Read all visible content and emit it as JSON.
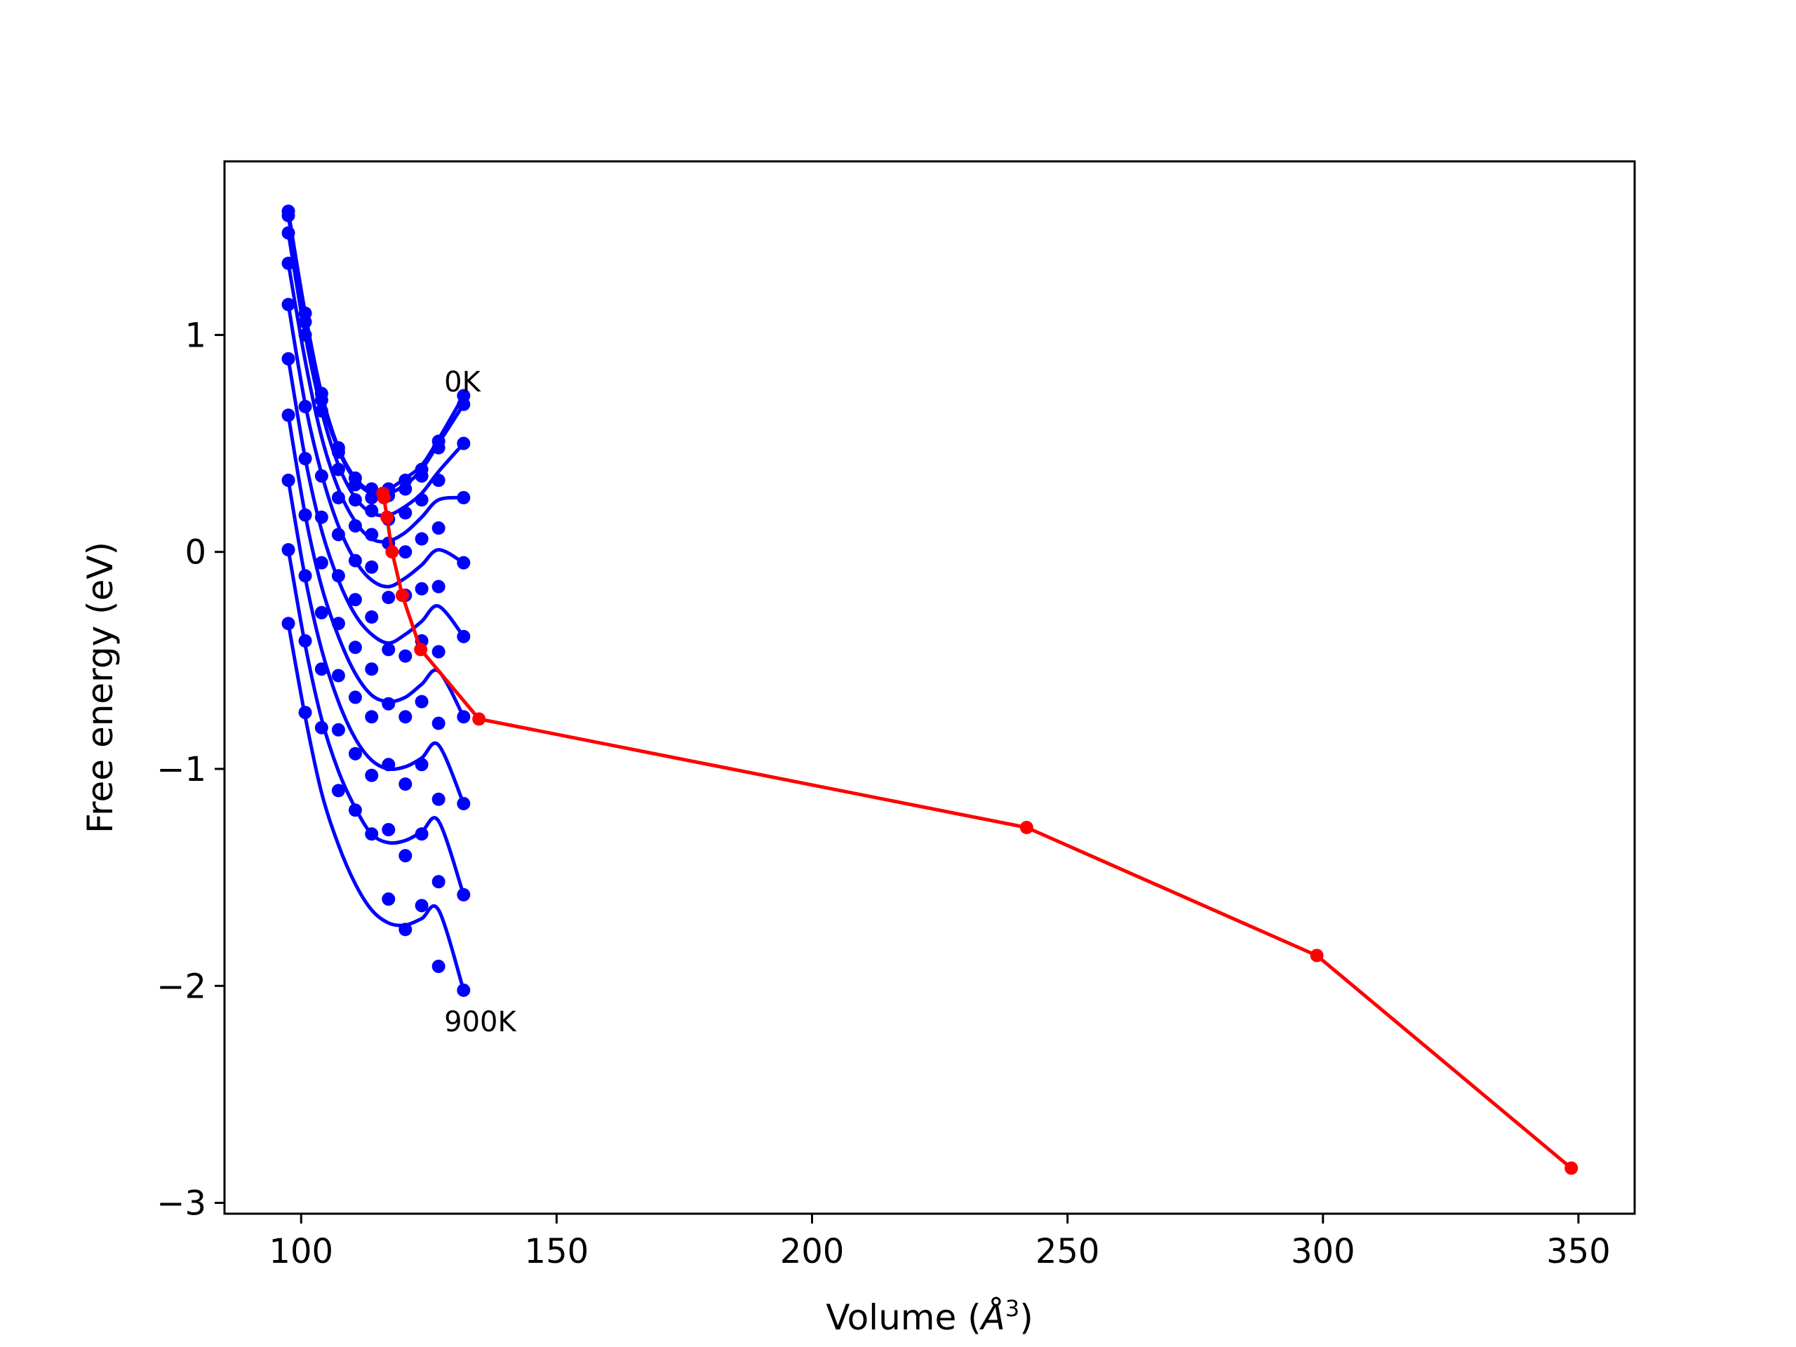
{
  "chart_data": {
    "type": "line",
    "xlabel_prefix": "Volume (",
    "xlabel_unit": "Å",
    "xlabel_exp": "3",
    "xlabel_suffix": ")",
    "ylabel": "Free energy (eV)",
    "xlim": [
      85,
      361
    ],
    "ylim": [
      -3.05,
      1.8
    ],
    "x_ticks": [
      100,
      150,
      200,
      250,
      300,
      350
    ],
    "y_ticks": [
      -3,
      -2,
      -1,
      0,
      1
    ],
    "x_tick_labels": [
      "100",
      "150",
      "200",
      "250",
      "300",
      "350"
    ],
    "y_tick_labels": [
      "−3",
      "−2",
      "−1",
      "0",
      "1"
    ],
    "grid": false,
    "colors": {
      "isotherm": "#0000ff",
      "minimum_path": "#ff0000"
    },
    "annotations": [
      {
        "text": "0K",
        "x": 128,
        "y": 0.74
      },
      {
        "text": "900K",
        "x": 128,
        "y": -2.21
      }
    ],
    "isotherm_volumes": [
      97.5,
      100.8,
      104.0,
      107.3,
      110.6,
      113.8,
      117.1,
      120.4,
      123.6,
      126.9,
      131.8
    ],
    "isotherms": [
      {
        "values": [
          1.57,
          1.1,
          0.73,
          0.48,
          0.34,
          0.28,
          0.29,
          0.34,
          0.4,
          0.52,
          0.72
        ]
      },
      {
        "values": [
          1.55,
          1.06,
          0.7,
          0.47,
          0.33,
          0.27,
          0.27,
          0.31,
          0.38,
          0.5,
          0.68
        ]
      },
      {
        "values": [
          1.47,
          1.0,
          0.65,
          0.4,
          0.25,
          0.18,
          0.17,
          0.21,
          0.27,
          0.37,
          0.5
        ]
      },
      {
        "values": [
          1.33,
          0.88,
          0.53,
          0.29,
          0.14,
          0.06,
          0.05,
          0.09,
          0.16,
          0.24,
          0.25
        ]
      },
      {
        "values": [
          1.14,
          0.68,
          0.36,
          0.12,
          -0.04,
          -0.13,
          -0.16,
          -0.12,
          -0.06,
          0.01,
          -0.05
        ]
      },
      {
        "values": [
          0.89,
          0.43,
          0.1,
          -0.13,
          -0.29,
          -0.38,
          -0.42,
          -0.38,
          -0.32,
          -0.25,
          -0.39
        ]
      },
      {
        "values": [
          0.63,
          0.17,
          -0.16,
          -0.39,
          -0.56,
          -0.66,
          -0.69,
          -0.67,
          -0.61,
          -0.55,
          -0.76
        ]
      },
      {
        "values": [
          0.33,
          -0.12,
          -0.45,
          -0.69,
          -0.86,
          -0.96,
          -1.0,
          -0.99,
          -0.95,
          -0.89,
          -1.16
        ]
      },
      {
        "values": [
          0.01,
          -0.43,
          -0.77,
          -1.01,
          -1.18,
          -1.3,
          -1.34,
          -1.33,
          -1.29,
          -1.24,
          -1.58
        ]
      },
      {
        "values": [
          -0.33,
          -0.76,
          -1.11,
          -1.35,
          -1.53,
          -1.65,
          -1.71,
          -1.72,
          -1.69,
          -1.65,
          -2.02
        ]
      }
    ],
    "isotherm_points": [
      [
        97.5,
        1.57
      ],
      [
        97.5,
        1.55
      ],
      [
        97.5,
        1.47
      ],
      [
        97.5,
        1.33
      ],
      [
        97.5,
        1.14
      ],
      [
        97.5,
        0.89
      ],
      [
        97.5,
        0.63
      ],
      [
        97.5,
        0.33
      ],
      [
        97.5,
        0.01
      ],
      [
        97.5,
        -0.33
      ],
      [
        100.8,
        1.1
      ],
      [
        100.8,
        1.06
      ],
      [
        100.8,
        1.0
      ],
      [
        100.8,
        0.67
      ],
      [
        100.8,
        0.43
      ],
      [
        100.8,
        0.17
      ],
      [
        100.8,
        -0.11
      ],
      [
        100.8,
        -0.41
      ],
      [
        100.8,
        -0.74
      ],
      [
        104.0,
        0.73
      ],
      [
        104.0,
        0.7
      ],
      [
        104.0,
        0.65
      ],
      [
        104.0,
        0.35
      ],
      [
        104.0,
        0.16
      ],
      [
        104.0,
        -0.05
      ],
      [
        104.0,
        -0.28
      ],
      [
        104.0,
        -0.54
      ],
      [
        104.0,
        -0.81
      ],
      [
        107.3,
        0.48
      ],
      [
        107.3,
        0.46
      ],
      [
        107.3,
        0.38
      ],
      [
        107.3,
        0.25
      ],
      [
        107.3,
        0.08
      ],
      [
        107.3,
        -0.11
      ],
      [
        107.3,
        -0.33
      ],
      [
        107.3,
        -0.57
      ],
      [
        107.3,
        -0.82
      ],
      [
        107.3,
        -1.1
      ],
      [
        110.6,
        0.34
      ],
      [
        110.6,
        0.31
      ],
      [
        110.6,
        0.24
      ],
      [
        110.6,
        0.12
      ],
      [
        110.6,
        -0.04
      ],
      [
        110.6,
        -0.22
      ],
      [
        110.6,
        -0.44
      ],
      [
        110.6,
        -0.67
      ],
      [
        110.6,
        -0.93
      ],
      [
        110.6,
        -1.19
      ],
      [
        113.8,
        0.29
      ],
      [
        113.8,
        0.25
      ],
      [
        113.8,
        0.19
      ],
      [
        113.8,
        0.08
      ],
      [
        113.8,
        -0.07
      ],
      [
        113.8,
        -0.3
      ],
      [
        113.8,
        -0.54
      ],
      [
        113.8,
        -0.76
      ],
      [
        113.8,
        -1.03
      ],
      [
        113.8,
        -1.3
      ],
      [
        117.1,
        0.29
      ],
      [
        117.1,
        0.26
      ],
      [
        117.1,
        0.15
      ],
      [
        117.1,
        0.04
      ],
      [
        117.1,
        -0.21
      ],
      [
        117.1,
        -0.45
      ],
      [
        117.1,
        -0.7
      ],
      [
        117.1,
        -0.98
      ],
      [
        117.1,
        -1.28
      ],
      [
        117.1,
        -1.6
      ],
      [
        120.4,
        0.33
      ],
      [
        120.4,
        0.29
      ],
      [
        120.4,
        0.18
      ],
      [
        120.4,
        0.0
      ],
      [
        120.4,
        -0.2
      ],
      [
        120.4,
        -0.48
      ],
      [
        120.4,
        -0.76
      ],
      [
        120.4,
        -1.07
      ],
      [
        120.4,
        -1.4
      ],
      [
        120.4,
        -1.74
      ],
      [
        123.6,
        0.38
      ],
      [
        123.6,
        0.35
      ],
      [
        123.6,
        0.24
      ],
      [
        123.6,
        0.06
      ],
      [
        123.6,
        -0.17
      ],
      [
        123.6,
        -0.41
      ],
      [
        123.6,
        -0.69
      ],
      [
        123.6,
        -0.98
      ],
      [
        123.6,
        -1.3
      ],
      [
        123.6,
        -1.63
      ],
      [
        126.9,
        0.51
      ],
      [
        126.9,
        0.48
      ],
      [
        126.9,
        0.33
      ],
      [
        126.9,
        0.11
      ],
      [
        126.9,
        -0.16
      ],
      [
        126.9,
        -0.46
      ],
      [
        126.9,
        -0.79
      ],
      [
        126.9,
        -1.14
      ],
      [
        126.9,
        -1.52
      ],
      [
        126.9,
        -1.91
      ],
      [
        131.8,
        0.72
      ],
      [
        131.8,
        0.68
      ],
      [
        131.8,
        0.5
      ],
      [
        131.8,
        0.25
      ],
      [
        131.8,
        -0.05
      ],
      [
        131.8,
        -0.39
      ],
      [
        131.8,
        -0.76
      ],
      [
        131.8,
        -1.16
      ],
      [
        131.8,
        -1.58
      ],
      [
        131.8,
        -2.02
      ]
    ],
    "minimum_path": {
      "x": [
        116.0,
        116.2,
        116.8,
        117.8,
        119.8,
        123.4,
        134.8,
        242.0,
        298.8,
        348.6
      ],
      "y": [
        0.27,
        0.25,
        0.16,
        0.0,
        -0.2,
        -0.45,
        -0.77,
        -1.27,
        -1.86,
        -2.84
      ]
    }
  }
}
